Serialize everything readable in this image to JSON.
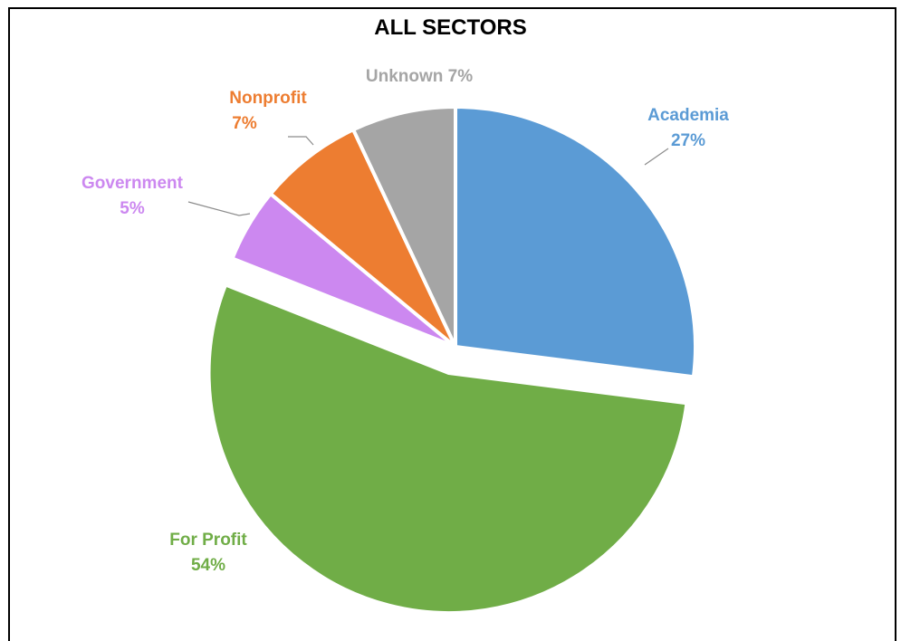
{
  "chart_data": {
    "type": "pie",
    "title": "ALL SECTORS",
    "slices": [
      {
        "label": "Academia",
        "value": 27,
        "display": "27%",
        "color": "#5b9bd5",
        "exploded": false
      },
      {
        "label": "For Profit",
        "value": 54,
        "display": "54%",
        "color": "#70ad47",
        "exploded": true
      },
      {
        "label": "Government",
        "value": 5,
        "display": "5%",
        "color": "#cc88f0",
        "exploded": false
      },
      {
        "label": "Nonprofit",
        "value": 7,
        "display": "7%",
        "color": "#ed7d31",
        "exploded": false
      },
      {
        "label": "Unknown",
        "value": 7,
        "display": "7%",
        "color": "#a5a5a5",
        "exploded": false
      }
    ],
    "legend": "none"
  }
}
